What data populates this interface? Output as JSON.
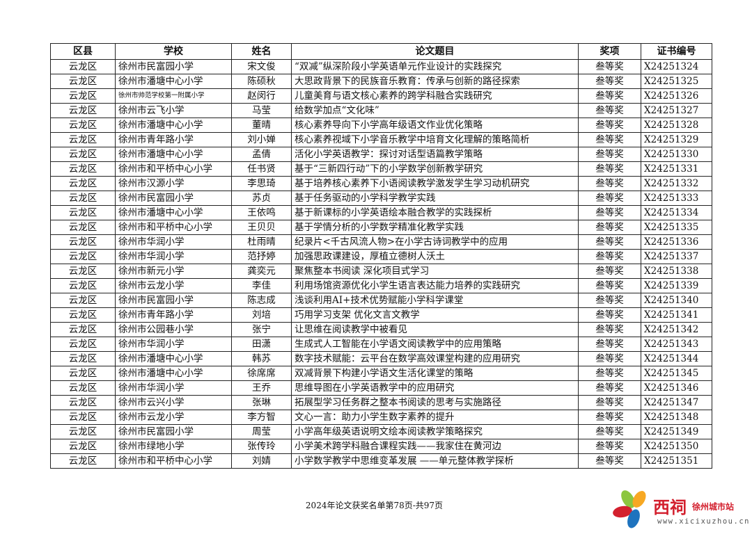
{
  "table": {
    "headers": [
      "区县",
      "学校",
      "姓名",
      "论文题目",
      "奖项",
      "证书编号"
    ],
    "rows": [
      [
        "云龙区",
        "徐州市民富园小学",
        "宋文俊",
        "“双减”纵深阶段小学英语单元作业设计的实践探究",
        "叁等奖",
        "X24251324"
      ],
      [
        "云龙区",
        "徐州市潘塘中心小学",
        "陈硕秋",
        "大思政背景下的民族音乐教育：传承与创新的路径探索",
        "叁等奖",
        "X24251325"
      ],
      [
        "云龙区",
        "徐州市帅范学校第一附属小学",
        "赵闵行",
        "儿童美育与语文核心素养的跨学科融合实践研究",
        "叁等奖",
        "X24251326"
      ],
      [
        "云龙区",
        "徐州市云飞小学",
        "马莹",
        "给数学加点“文化味”",
        "叁等奖",
        "X24251327"
      ],
      [
        "云龙区",
        "徐州市潘塘中心小学",
        "董晴",
        "核心素养导向下小学高年级语文作业优化策略",
        "叁等奖",
        "X24251328"
      ],
      [
        "云龙区",
        "徐州市青年路小学",
        "刘小婵",
        "核心素养视域下小学音乐教学中培育文化理解的策略简析",
        "叁等奖",
        "X24251329"
      ],
      [
        "云龙区",
        "徐州市潘塘中心小学",
        "孟倩",
        "活化小学英语教学：探讨对话型语篇教学策略",
        "叁等奖",
        "X24251330"
      ],
      [
        "云龙区",
        "徐州市和平桥中心小学",
        "任书贤",
        "基于“三新四行动”下的小学数学创新教学研究",
        "叁等奖",
        "X24251331"
      ],
      [
        "云龙区",
        "徐州市汉源小学",
        "李思琦",
        "基于培养核心素养下小语阅读教学激发学生学习动机研究",
        "叁等奖",
        "X24251332"
      ],
      [
        "云龙区",
        "徐州市民富园小学",
        "苏贞",
        "基于任务驱动的小学科学教学实践",
        "叁等奖",
        "X24251333"
      ],
      [
        "云龙区",
        "徐州市潘塘中心小学",
        "王依鸣",
        "基于新课标的小学英语绘本融合教学的实践探析",
        "叁等奖",
        "X24251334"
      ],
      [
        "云龙区",
        "徐州市和平桥中心小学",
        "王贝贝",
        "基于学情分析的小学数学精准化教学实践",
        "叁等奖",
        "X24251335"
      ],
      [
        "云龙区",
        "徐州市华润小学",
        "杜雨晴",
        "纪录片<千古风流人物>在小学古诗词教学中的应用",
        "叁等奖",
        "X24251336"
      ],
      [
        "云龙区",
        "徐州市华润小学",
        "范抒婷",
        "加强思政课建设，厚植立德树人沃土",
        "叁等奖",
        "X24251337"
      ],
      [
        "云龙区",
        "徐州市新元小学",
        "龚奕元",
        "聚焦整本书阅读 深化项目式学习",
        "叁等奖",
        "X24251338"
      ],
      [
        "云龙区",
        "徐州市云龙小学",
        "李佳",
        "利用场馆资源优化小学生语言表达能力培养的实践研究",
        "叁等奖",
        "X24251339"
      ],
      [
        "云龙区",
        "徐州市民富园小学",
        "陈志成",
        "浅谈利用AI+技术优势赋能小学科学课堂",
        "叁等奖",
        "X24251340"
      ],
      [
        "云龙区",
        "徐州市青年路小学",
        "刘培",
        "巧用学习支架 优化文言文教学",
        "叁等奖",
        "X24251341"
      ],
      [
        "云龙区",
        "徐州市公园巷小学",
        "张宁",
        "让思维在阅读教学中被看见",
        "叁等奖",
        "X24251342"
      ],
      [
        "云龙区",
        "徐州市华润小学",
        "田潇",
        "生成式人工智能在小学语文阅读教学中的应用策略",
        "叁等奖",
        "X24251343"
      ],
      [
        "云龙区",
        "徐州市潘塘中心小学",
        "韩苏",
        "数字技术赋能：云平台在数学高效课堂构建的应用研究",
        "叁等奖",
        "X24251344"
      ],
      [
        "云龙区",
        "徐州市潘塘中心小学",
        "徐席席",
        "双减背景下构建小学语文生活化课堂的策略",
        "叁等奖",
        "X24251345"
      ],
      [
        "云龙区",
        "徐州市华润小学",
        "王乔",
        "思维导图在小学英语教学中的应用研究",
        "叁等奖",
        "X24251346"
      ],
      [
        "云龙区",
        "徐州市云兴小学",
        "张琳",
        "拓展型学习任务群之整本书阅读的思考与实施路径",
        "叁等奖",
        "X24251347"
      ],
      [
        "云龙区",
        "徐州市云龙小学",
        "李方智",
        "文心一言：助力小学生数字素养的提升",
        "叁等奖",
        "X24251348"
      ],
      [
        "云龙区",
        "徐州市民富园小学",
        "周莹",
        "小学高年级英语说明文绘本阅读教学策略探究",
        "叁等奖",
        "X24251349"
      ],
      [
        "云龙区",
        "徐州市绿地小学",
        "张传玲",
        "小学美术跨学科融合课程实践——我家住在黄河边",
        "叁等奖",
        "X24251350"
      ],
      [
        "云龙区",
        "徐州市和平桥中心小学",
        "刘婧",
        "小学数学教学中思维变革发展 ——单元整体教学探析",
        "叁等奖",
        "X24251351"
      ]
    ]
  },
  "footer": "2024年论文获奖名单第78页-共97页",
  "logo": {
    "name": "西祠",
    "city": "徐州城市站",
    "url": "www.xicixuzhou.cn"
  },
  "colors": {
    "logo_red": "#d3202e"
  }
}
